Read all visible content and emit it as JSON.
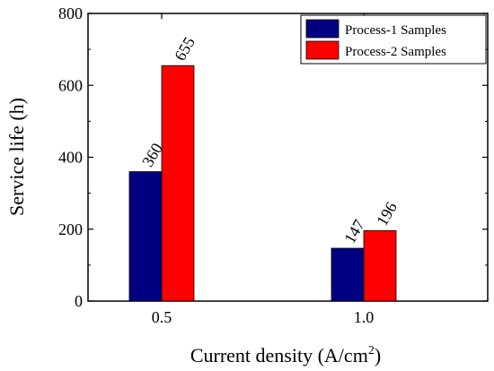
{
  "chart_data": {
    "type": "bar",
    "categories": [
      "0.5",
      "1.0"
    ],
    "series": [
      {
        "name": "Process-1 Samples",
        "values": [
          360,
          147
        ],
        "color": "#000080"
      },
      {
        "name": "Process-2 Samples",
        "values": [
          655,
          196
        ],
        "color": "#ff0000"
      }
    ],
    "data_labels": [
      [
        "360",
        "147"
      ],
      [
        "655",
        "196"
      ]
    ],
    "xlabel": "Current density (A/cm",
    "xlabel_sup": "2",
    "xlabel_end": ")",
    "ylabel": "Service life (h)",
    "ylim": [
      0,
      800
    ],
    "yticks": [
      "0",
      "200",
      "400",
      "600",
      "800"
    ],
    "legend_position": "top-right",
    "grid": false
  }
}
